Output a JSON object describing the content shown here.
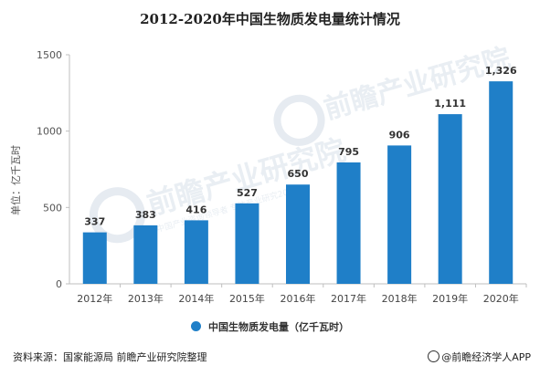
{
  "title": "2012-2020年中国生物质发电量统计情况",
  "legend_label": "中国生物质发电量（亿千瓦时）",
  "source": "资料来源：国家能源局 前瞻产业研究院整理",
  "brand": "@前瞻经济学人APP",
  "watermark": {
    "text": "前瞻产业研究院",
    "subtext": "中国产业咨询领导者 专注产业研究20年"
  },
  "colors": {
    "bar": "#1f7fc8",
    "axis": "#bfbfbf"
  },
  "chart_data": {
    "type": "bar",
    "title": "2012-2020年中国生物质发电量统计情况",
    "ylabel": "单位：亿千瓦时",
    "xlabel": "",
    "categories": [
      "2012年",
      "2013年",
      "2014年",
      "2015年",
      "2016年",
      "2017年",
      "2018年",
      "2019年",
      "2020年"
    ],
    "series": [
      {
        "name": "中国生物质发电量（亿千瓦时）",
        "values": [
          337,
          383,
          416,
          527,
          650,
          795,
          906,
          1111,
          1326
        ]
      }
    ],
    "data_labels": [
      "337",
      "383",
      "416",
      "527",
      "650",
      "795",
      "906",
      "1,111",
      "1,326"
    ],
    "ylim": [
      0,
      1500
    ],
    "yticks": [
      0,
      500,
      1000,
      1500
    ],
    "grid": false,
    "legend_position": "bottom"
  }
}
